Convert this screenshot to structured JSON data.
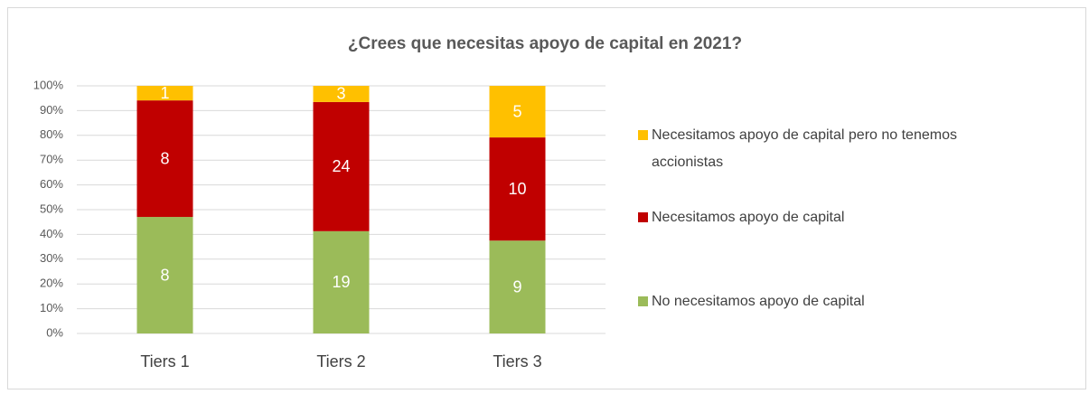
{
  "chart_data": {
    "type": "stacked_bar_percent",
    "title": "¿Crees que necesitas apoyo de capital en 2021?",
    "categories": [
      "Tiers 1",
      "Tiers 2",
      "Tiers 3"
    ],
    "series": [
      {
        "name": "No necesitamos apoyo de capital",
        "color": "#9BBB59",
        "values": [
          8,
          19,
          9
        ]
      },
      {
        "name": "Necesitamos apoyo de capital",
        "color": "#C00000",
        "values": [
          8,
          24,
          10
        ]
      },
      {
        "name": "Necesitamos apoyo de capital pero no tenemos accionistas",
        "color": "#FFC000",
        "values": [
          1,
          3,
          5
        ]
      }
    ],
    "ylim": [
      0,
      100
    ],
    "yticks": [
      {
        "value": 0,
        "label": "0%"
      },
      {
        "value": 10,
        "label": "10%"
      },
      {
        "value": 20,
        "label": "20%"
      },
      {
        "value": 30,
        "label": "30%"
      },
      {
        "value": 40,
        "label": "40%"
      },
      {
        "value": 50,
        "label": "50%"
      },
      {
        "value": 60,
        "label": "60%"
      },
      {
        "value": 70,
        "label": "70%"
      },
      {
        "value": 80,
        "label": "80%"
      },
      {
        "value": 90,
        "label": "90%"
      },
      {
        "value": 100,
        "label": "100%"
      }
    ],
    "grid": true,
    "legend": "right"
  }
}
